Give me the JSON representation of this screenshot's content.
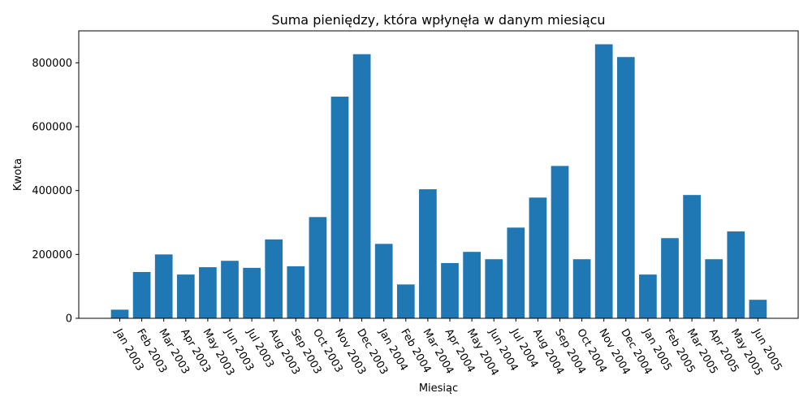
{
  "chart_data": {
    "type": "bar",
    "title": "Suma pieniędzy, która wpłynęła w danym miesiącu",
    "xlabel": "Miesiąc",
    "ylabel": "Kwota",
    "ylim": [
      0,
      900000
    ],
    "yticks": [
      0,
      200000,
      400000,
      600000,
      800000
    ],
    "ytick_labels": [
      "0",
      "200000",
      "400000",
      "600000",
      "800000"
    ],
    "grid": false,
    "bar_color": "#1f77b4",
    "categories": [
      "Jan 2003",
      "Feb 2003",
      "Mar 2003",
      "Apr 2003",
      "May 2003",
      "Jun 2003",
      "Jul 2003",
      "Aug 2003",
      "Sep 2003",
      "Oct 2003",
      "Nov 2003",
      "Dec 2003",
      "Jan 2004",
      "Feb 2004",
      "Mar 2004",
      "Apr 2004",
      "May 2004",
      "Jun 2004",
      "Jul 2004",
      "Aug 2004",
      "Sep 2004",
      "Oct 2004",
      "Nov 2004",
      "Dec 2004",
      "Jan 2005",
      "Feb 2005",
      "Mar 2005",
      "Apr 2005",
      "May 2005",
      "Jun 2005"
    ],
    "values": [
      27000,
      145000,
      200000,
      137000,
      160000,
      180000,
      158000,
      247000,
      163000,
      317000,
      694000,
      827000,
      233000,
      106000,
      404000,
      173000,
      208000,
      185000,
      284000,
      378000,
      477000,
      185000,
      858000,
      818000,
      137000,
      251000,
      386000,
      185000,
      272000,
      58000
    ]
  }
}
